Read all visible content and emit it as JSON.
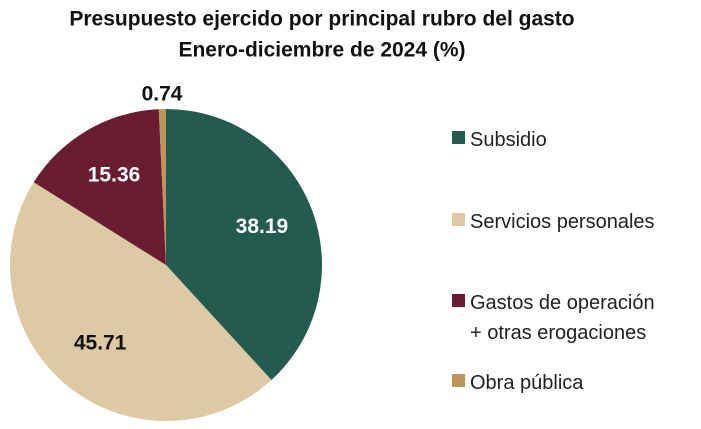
{
  "chart_data": {
    "type": "pie",
    "title": "Presupuesto ejercido por principal rubro del gasto",
    "subtitle": "Enero-diciembre de 2024 (%)",
    "categories": [
      "Subsidio",
      "Servicios personales",
      "Gastos de operación + otras erogaciones",
      "Obra pública"
    ],
    "values": [
      38.19,
      45.71,
      15.36,
      0.74
    ],
    "colors": [
      "#235b4e",
      "#ddc9a3",
      "#691c32",
      "#bc955c"
    ],
    "legend": "right"
  }
}
